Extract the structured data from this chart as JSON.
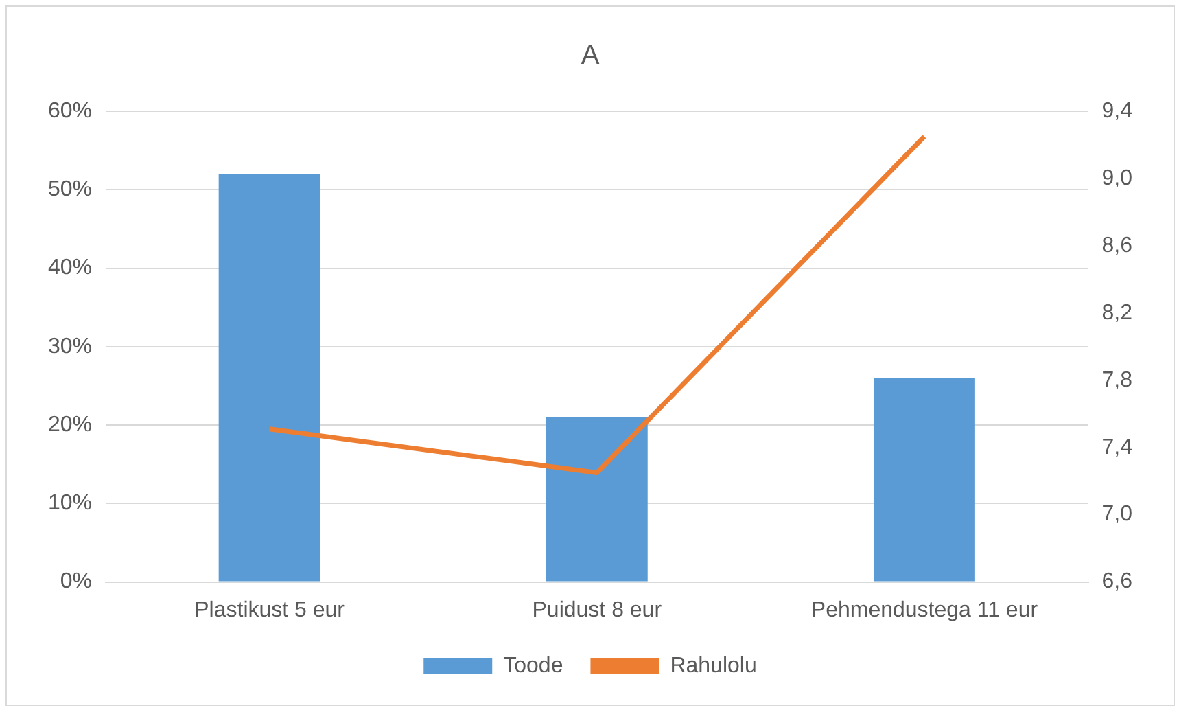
{
  "chart_data": {
    "type": "bar",
    "title": "A",
    "categories": [
      "Plastikust 5 eur",
      "Puidust 8 eur",
      "Pehmendustega 11 eur"
    ],
    "series": [
      {
        "name": "Toode",
        "color": "#5b9bd5",
        "values": [
          0.52,
          0.21,
          0.26
        ]
      },
      {
        "name": "Rahulolu",
        "type": "line",
        "axis": "y2",
        "color": "#ed7d31",
        "values": [
          7.51,
          7.25,
          9.25
        ]
      }
    ],
    "ylim": [
      0,
      0.6
    ],
    "yticks": [
      {
        "value": 0,
        "label": "0%"
      },
      {
        "value": 0.1,
        "label": "10%"
      },
      {
        "value": 0.2,
        "label": "20%"
      },
      {
        "value": 0.3,
        "label": "30%"
      },
      {
        "value": 0.4,
        "label": "40%"
      },
      {
        "value": 0.5,
        "label": "50%"
      },
      {
        "value": 0.6,
        "label": "60%"
      }
    ],
    "y2lim": [
      6.6,
      9.4
    ],
    "y2ticks": [
      {
        "value": 6.6,
        "label": "6,6"
      },
      {
        "value": 7.0,
        "label": "7,0"
      },
      {
        "value": 7.4,
        "label": "7,4"
      },
      {
        "value": 7.8,
        "label": "7,8"
      },
      {
        "value": 8.2,
        "label": "8,2"
      },
      {
        "value": 8.6,
        "label": "8,6"
      },
      {
        "value": 9.0,
        "label": "9,0"
      },
      {
        "value": 9.4,
        "label": "9,4"
      }
    ],
    "grid": "y",
    "legend": "bottom",
    "marker": "none",
    "line_style": "solid"
  }
}
